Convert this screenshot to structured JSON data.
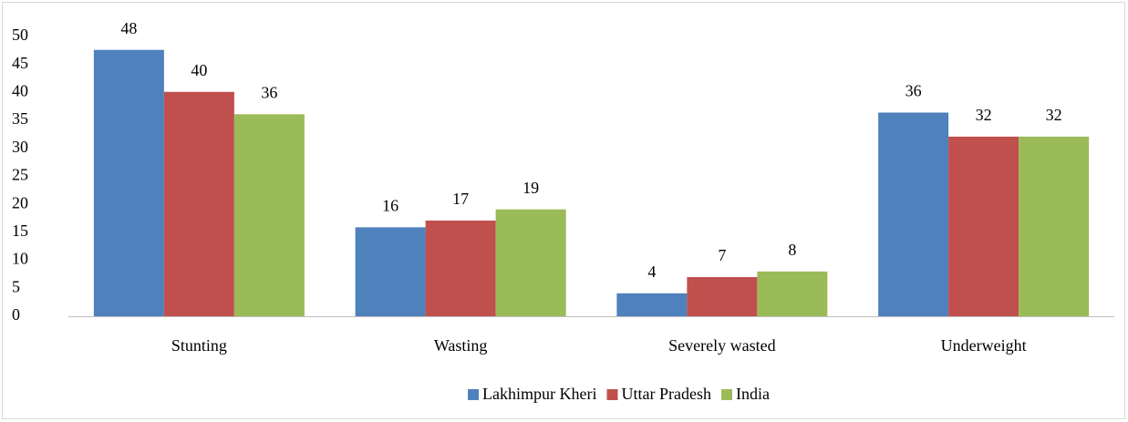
{
  "chart_data": {
    "type": "bar",
    "categories": [
      "Stunting",
      "Wasting",
      "Severely wasted",
      "Underweight"
    ],
    "series": [
      {
        "name": "Lakhimpur Kheri",
        "color": "#4f81bd",
        "values": [
          47.6,
          15.9,
          4.1,
          36.4
        ],
        "value_labels": [
          "48",
          "16",
          "4",
          "36"
        ]
      },
      {
        "name": "Uttar Pradesh",
        "color": "#c0504d",
        "values": [
          40.1,
          17.1,
          7,
          32.1
        ],
        "value_labels": [
          "40",
          "17",
          "7",
          "32"
        ]
      },
      {
        "name": "India",
        "color": "#9bbb59",
        "values": [
          36.1,
          19.1,
          8,
          32.1
        ],
        "value_labels": [
          "36",
          "19",
          "8",
          "32"
        ]
      }
    ],
    "ylim": [
      0,
      50
    ],
    "yticks": [
      0,
      5,
      10,
      15,
      20,
      25,
      30,
      35,
      40,
      45,
      50
    ],
    "grid": false,
    "legend": "bottom"
  }
}
